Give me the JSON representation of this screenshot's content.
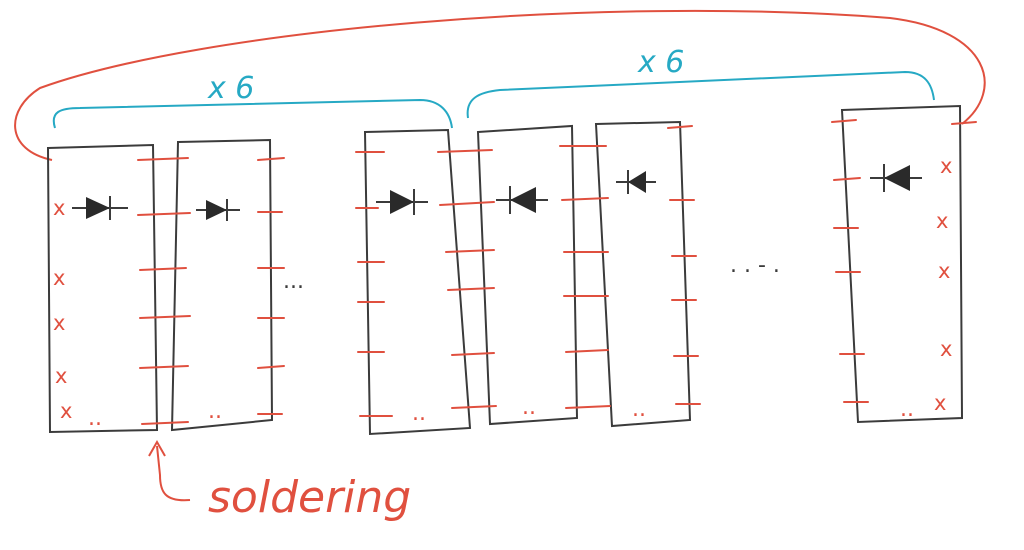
{
  "colors": {
    "ink": "#3b3b3b",
    "solder": "#e0503f",
    "bracket": "#26a9c4",
    "background": "#ffffff"
  },
  "labels": {
    "group_left": "x 6",
    "group_right": "x 6",
    "soldering": "soldering",
    "ellipsis_short": "...",
    "ellipsis_long": ". . - .",
    "row_ellipsis": "..",
    "x_mark": "x"
  },
  "strips": [
    {
      "id": "strip-1",
      "diode": "forward"
    },
    {
      "id": "strip-2",
      "diode": "forward"
    },
    {
      "id": "strip-3",
      "diode": "forward"
    },
    {
      "id": "strip-4",
      "diode": "reverse"
    },
    {
      "id": "strip-5",
      "diode": "reverse"
    },
    {
      "id": "strip-6",
      "diode": "reverse"
    }
  ],
  "icons": {
    "forward_diode": "diode-forward-icon",
    "reverse_diode": "diode-reverse-icon",
    "arrow": "arrow-up-icon"
  }
}
